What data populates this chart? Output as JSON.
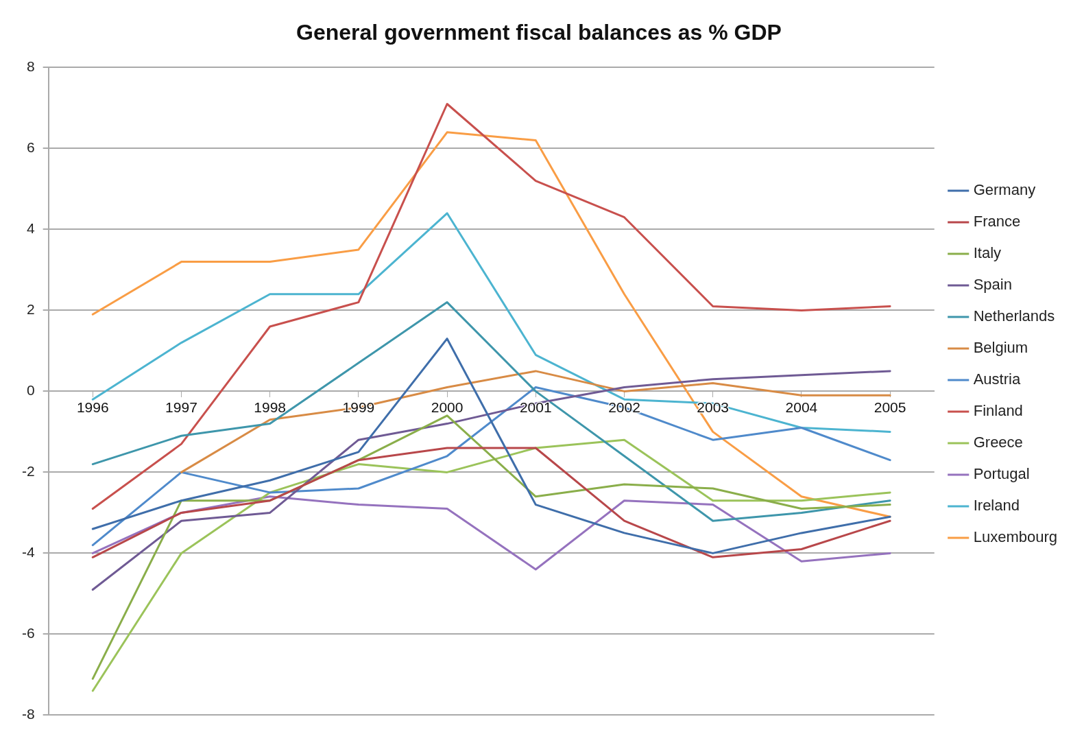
{
  "chart_data": {
    "type": "line",
    "title": "General government fiscal balances as % GDP",
    "categories": [
      "1996",
      "1997",
      "1998",
      "1999",
      "2000",
      "2001",
      "2002",
      "2003",
      "2004",
      "2005"
    ],
    "series": [
      {
        "name": "Germany",
        "color": "#3f6eaa",
        "values": [
          -3.4,
          -2.7,
          -2.2,
          -1.5,
          1.3,
          -2.8,
          -3.5,
          -4.0,
          -3.5,
          -3.1
        ]
      },
      {
        "name": "France",
        "color": "#b8474a",
        "values": [
          -4.1,
          -3.0,
          -2.7,
          -1.7,
          -1.4,
          -1.4,
          -3.2,
          -4.1,
          -3.9,
          -3.2
        ]
      },
      {
        "name": "Italy",
        "color": "#8aae4a",
        "values": [
          -7.1,
          -2.7,
          -2.7,
          -1.7,
          -0.6,
          -2.6,
          -2.3,
          -2.4,
          -2.9,
          -2.8
        ]
      },
      {
        "name": "Spain",
        "color": "#6f5a94",
        "values": [
          -4.9,
          -3.2,
          -3.0,
          -1.2,
          -0.8,
          -0.3,
          0.1,
          0.3,
          0.4,
          0.5
        ]
      },
      {
        "name": "Netherlands",
        "color": "#3e96ab",
        "values": [
          -1.8,
          -1.1,
          -0.8,
          0.7,
          2.2,
          0.0,
          -1.6,
          -3.2,
          -3.0,
          -2.7
        ]
      },
      {
        "name": "Belgium",
        "color": "#d88b45",
        "values": [
          null,
          -2.0,
          -0.7,
          -0.4,
          0.1,
          0.5,
          0.0,
          0.2,
          -0.1,
          -0.1
        ]
      },
      {
        "name": "Austria",
        "color": "#4f8acb",
        "values": [
          -3.8,
          -2.0,
          -2.5,
          -2.4,
          -1.6,
          0.1,
          -0.4,
          -1.2,
          -0.9,
          -1.7
        ]
      },
      {
        "name": "Finland",
        "color": "#c8504d",
        "values": [
          -2.9,
          -1.3,
          1.6,
          2.2,
          7.1,
          5.2,
          4.3,
          2.1,
          2.0,
          2.1
        ]
      },
      {
        "name": "Greece",
        "color": "#9bc35a",
        "values": [
          -7.4,
          -4.0,
          -2.5,
          -1.8,
          -2.0,
          -1.4,
          -1.2,
          -2.7,
          -2.7,
          -2.5
        ]
      },
      {
        "name": "Portugal",
        "color": "#9572be",
        "values": [
          -4.0,
          -3.0,
          -2.6,
          -2.8,
          -2.9,
          -4.4,
          -2.7,
          -2.8,
          -4.2,
          -4.0
        ]
      },
      {
        "name": "Ireland",
        "color": "#4cb4d0",
        "values": [
          -0.2,
          1.2,
          2.4,
          2.4,
          4.4,
          0.9,
          -0.2,
          -0.3,
          -0.9,
          -1.0
        ]
      },
      {
        "name": "Luxembourg",
        "color": "#f99d45",
        "values": [
          1.9,
          3.2,
          3.2,
          3.5,
          6.4,
          6.2,
          2.4,
          -1.0,
          -2.6,
          -3.1
        ]
      }
    ],
    "ylim": [
      -8,
      8
    ],
    "yticks": [
      -8,
      -6,
      -4,
      -2,
      0,
      2,
      4,
      6,
      8
    ],
    "grid": "y",
    "legend": "right",
    "marker": "none",
    "line_style": "solid"
  }
}
